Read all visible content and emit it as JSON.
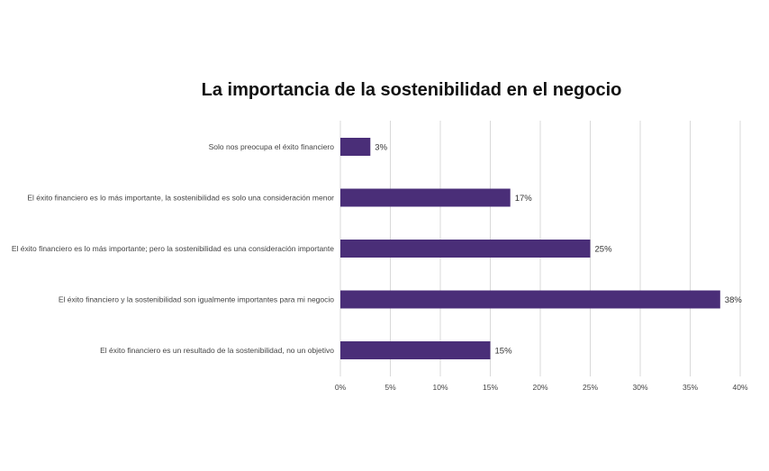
{
  "chart_data": {
    "type": "bar",
    "orientation": "horizontal",
    "title": "La importancia de la sostenibilidad en el negocio",
    "categories": [
      "Solo nos preocupa el éxito financiero",
      "El éxito financiero es lo más importante, la sostenibilidad es solo una consideración menor",
      "El éxito financiero es lo más importante; pero la sostenibilidad es una consideración importante",
      "El éxito financiero y la sostenibilidad son igualmente importantes para mi negocio",
      "El éxito financiero es un resultado de la sostenibilidad, no un objetivo"
    ],
    "values": [
      3,
      17,
      25,
      38,
      15
    ],
    "data_labels": [
      "3%",
      "17%",
      "25%",
      "38%",
      "15%"
    ],
    "x_ticks": [
      "0%",
      "5%",
      "10%",
      "15%",
      "20%",
      "25%",
      "30%",
      "35%",
      "40%"
    ],
    "xlim": [
      0,
      40
    ],
    "xlabel": "",
    "ylabel": "",
    "grid": "vertical",
    "legend": "none",
    "bar_color": "#4a2e78",
    "grid_color": "#d9d9d9"
  }
}
